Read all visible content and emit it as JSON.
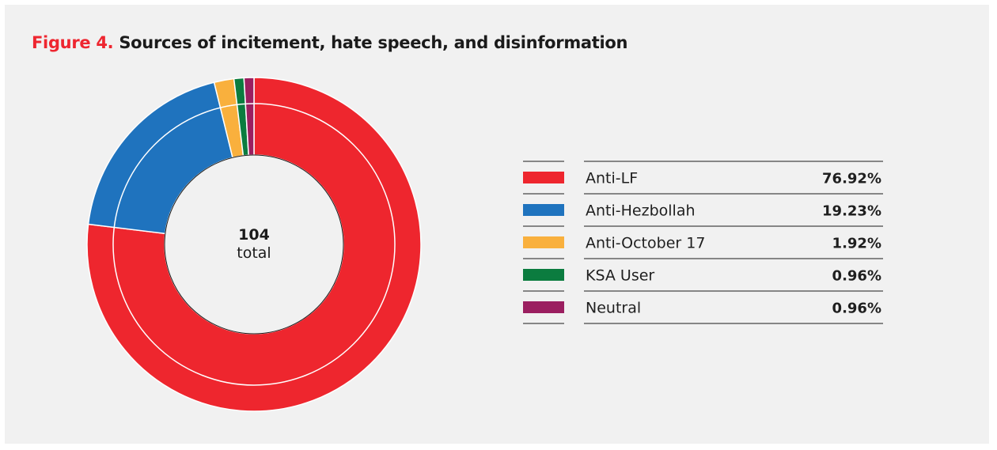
{
  "figure": {
    "label": "Figure 4.",
    "title": "Sources of incitement, hate speech, and disinformation"
  },
  "chart_data": {
    "type": "pie",
    "subtype": "donut",
    "center": {
      "value": "104",
      "label": "total"
    },
    "categories": [
      "Anti-LF",
      "Anti-Hezbollah",
      "Anti-October 17",
      "KSA User",
      "Neutral"
    ],
    "values": [
      76.92,
      19.23,
      1.92,
      0.96,
      0.96
    ],
    "value_labels": [
      "76.92%",
      "19.23%",
      "1.92%",
      "0.96%",
      "0.96%"
    ],
    "colors": [
      "#ee262e",
      "#1f73be",
      "#f9b03d",
      "#0b7c3f",
      "#9b1f60"
    ],
    "legend_position": "right"
  },
  "colors": {
    "background": "#f1f1f1",
    "accent": "#ee2630"
  }
}
